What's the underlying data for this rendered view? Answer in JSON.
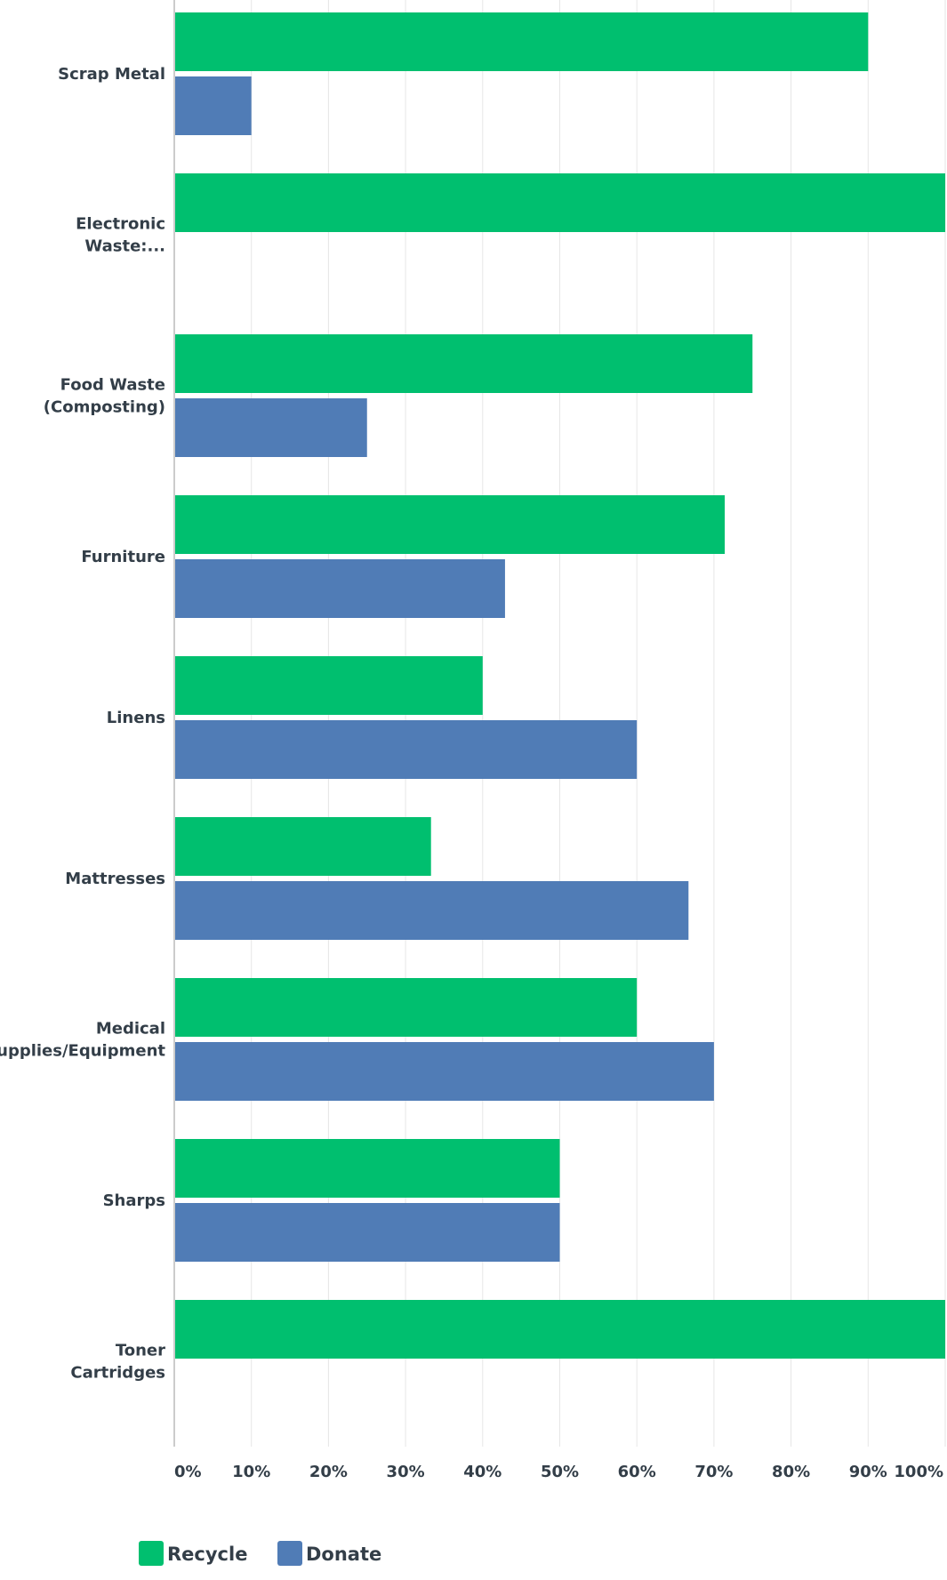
{
  "chart_data": {
    "type": "bar",
    "orientation": "horizontal",
    "categories": [
      [
        "Scrap Metal"
      ],
      [
        "Electronic",
        "Waste:..."
      ],
      [
        "Food Waste",
        "(Composting)"
      ],
      [
        "Furniture"
      ],
      [
        "Linens"
      ],
      [
        "Mattresses"
      ],
      [
        "Medical",
        "Supplies/Equipment"
      ],
      [
        "Sharps"
      ],
      [
        "Toner",
        "Cartridges"
      ]
    ],
    "series": [
      {
        "name": "Recycle",
        "color": "#00bf6f",
        "values": [
          90,
          100,
          75,
          71.4,
          40,
          33.3,
          60,
          50,
          100
        ]
      },
      {
        "name": "Donate",
        "color": "#507cb6",
        "values": [
          10,
          0,
          25,
          42.9,
          60,
          66.7,
          70,
          50,
          0
        ]
      }
    ],
    "x_ticks": [
      "0%",
      "10%",
      "20%",
      "30%",
      "40%",
      "50%",
      "60%",
      "70%",
      "80%",
      "90%",
      "100%"
    ],
    "xlim": [
      0,
      100
    ],
    "grid": true,
    "legend_position": "bottom-left",
    "title": "",
    "xlabel": "",
    "ylabel": ""
  }
}
